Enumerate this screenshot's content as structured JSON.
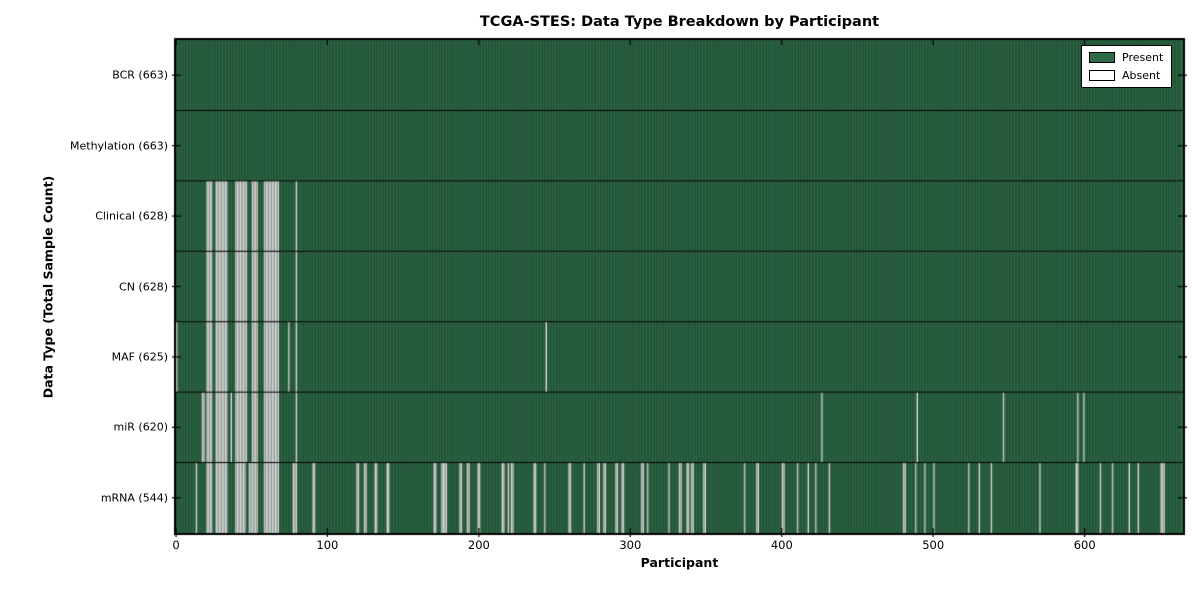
{
  "figure": {
    "title": "TCGA-STES: Data Type Breakdown by Participant",
    "xlabel": "Participant",
    "ylabel": "Data Type (Total Sample Count)"
  },
  "legend": {
    "items": [
      {
        "label": "Present",
        "color": "#2e6b48"
      },
      {
        "label": "Absent",
        "color": "#ffffff"
      }
    ]
  },
  "chart_data": {
    "type": "heatmap",
    "title": "TCGA-STES: Data Type Breakdown by Participant",
    "xlabel": "Participant",
    "ylabel": "Data Type (Total Sample Count)",
    "legend": [
      "Present",
      "Absent"
    ],
    "legend_position": "upper right",
    "grid": false,
    "x_ticks": [
      0,
      100,
      200,
      300,
      400,
      500,
      600
    ],
    "xlim": [
      0,
      665
    ],
    "n_participants": 663,
    "colors": {
      "present": "#2e6b48",
      "absent": "#e6e6e6",
      "cell_edge": "rgba(0,0,0,0.40)",
      "row_divider": "#000000",
      "frame": "#000000"
    },
    "rows": [
      {
        "name": "BCR",
        "label": "BCR (663)",
        "total": 663,
        "absent_participants": []
      },
      {
        "name": "Methylation",
        "label": "Methylation (663)",
        "total": 663,
        "absent_participants": []
      },
      {
        "name": "Clinical",
        "label": "Clinical (628)",
        "total": 628,
        "absent_participants": [
          20,
          21,
          22,
          23,
          26,
          27,
          28,
          29,
          30,
          31,
          32,
          33,
          39,
          40,
          41,
          42,
          43,
          44,
          45,
          46,
          50,
          51,
          52,
          53,
          58,
          59,
          60,
          61,
          62,
          63,
          64,
          65,
          66,
          67,
          79
        ]
      },
      {
        "name": "CN",
        "label": "CN (628)",
        "total": 628,
        "absent_participants": [
          20,
          21,
          22,
          23,
          26,
          27,
          28,
          29,
          30,
          31,
          32,
          33,
          39,
          40,
          41,
          42,
          43,
          44,
          45,
          46,
          50,
          51,
          52,
          53,
          58,
          59,
          60,
          61,
          62,
          63,
          64,
          65,
          66,
          67,
          79
        ]
      },
      {
        "name": "MAF",
        "label": "MAF (625)",
        "total": 625,
        "absent_participants": [
          0,
          20,
          21,
          22,
          23,
          26,
          27,
          28,
          29,
          30,
          31,
          32,
          33,
          39,
          40,
          41,
          42,
          43,
          44,
          45,
          46,
          50,
          51,
          52,
          53,
          58,
          59,
          60,
          61,
          62,
          63,
          64,
          65,
          66,
          67,
          74,
          79,
          244
        ]
      },
      {
        "name": "miR",
        "label": "miR (620)",
        "total": 620,
        "absent_participants": [
          17,
          18,
          20,
          21,
          22,
          23,
          26,
          27,
          28,
          29,
          30,
          31,
          32,
          33,
          36,
          39,
          40,
          41,
          42,
          43,
          44,
          45,
          46,
          50,
          51,
          52,
          53,
          58,
          59,
          60,
          61,
          62,
          63,
          64,
          65,
          66,
          67,
          79,
          426,
          489,
          546,
          595,
          599
        ]
      },
      {
        "name": "mRNA",
        "label": "mRNA (544)",
        "total": 544,
        "absent_participants": [
          13,
          20,
          21,
          22,
          23,
          26,
          27,
          28,
          29,
          30,
          31,
          32,
          33,
          39,
          40,
          41,
          42,
          43,
          44,
          45,
          48,
          49,
          50,
          51,
          52,
          53,
          58,
          59,
          60,
          61,
          62,
          63,
          64,
          65,
          66,
          67,
          77,
          78,
          79,
          90,
          91,
          119,
          120,
          124,
          125,
          131,
          132,
          139,
          140,
          170,
          171,
          175,
          176,
          177,
          178,
          187,
          188,
          192,
          193,
          199,
          200,
          215,
          216,
          219,
          221,
          222,
          236,
          237,
          243,
          259,
          260,
          269,
          278,
          279,
          282,
          283,
          290,
          291,
          294,
          295,
          307,
          308,
          311,
          325,
          332,
          333,
          337,
          338,
          340,
          341,
          348,
          349,
          375,
          383,
          384,
          400,
          401,
          410,
          417,
          422,
          431,
          480,
          481,
          488,
          494,
          500,
          523,
          530,
          538,
          570,
          594,
          595,
          610,
          618,
          629,
          635,
          650,
          651,
          652
        ]
      }
    ]
  }
}
